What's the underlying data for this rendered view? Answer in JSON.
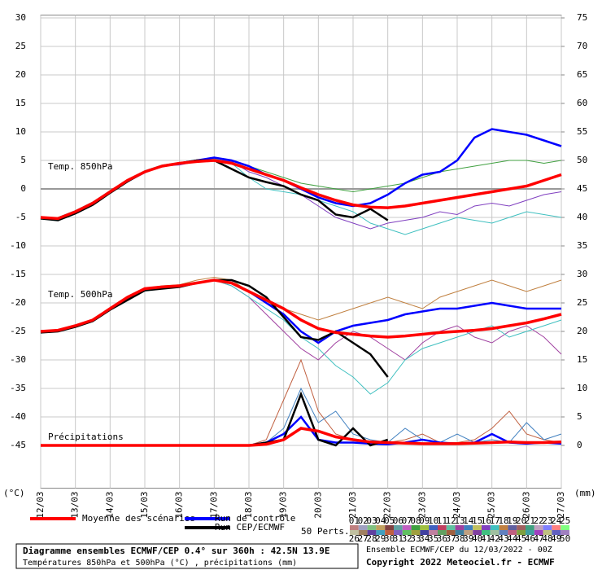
{
  "chart_data": {
    "type": "line",
    "x_unit_label": "(°C)",
    "y2_unit_label": "(mm)",
    "x": [
      0,
      0.5,
      1,
      1.5,
      2,
      2.5,
      3,
      3.5,
      4,
      4.5,
      5,
      5.5,
      6,
      6.5,
      7,
      7.5,
      8,
      8.5,
      9,
      9.5,
      10,
      10.5,
      11,
      11.5,
      12,
      12.5,
      13,
      13.5,
      14,
      14.5,
      15
    ],
    "xlim": [
      0,
      15
    ],
    "xticks": [
      {
        "value": 0,
        "label": "12/03"
      },
      {
        "value": 1,
        "label": "13/03"
      },
      {
        "value": 2,
        "label": "14/03"
      },
      {
        "value": 3,
        "label": "15/03"
      },
      {
        "value": 4,
        "label": "16/03"
      },
      {
        "value": 5,
        "label": "17/03"
      },
      {
        "value": 6,
        "label": "18/03"
      },
      {
        "value": 7,
        "label": "19/03"
      },
      {
        "value": 8,
        "label": "20/03"
      },
      {
        "value": 9,
        "label": "21/03"
      },
      {
        "value": 10,
        "label": "22/03"
      },
      {
        "value": 11,
        "label": "23/03"
      },
      {
        "value": 12,
        "label": "24/03"
      },
      {
        "value": 13,
        "label": "25/03"
      },
      {
        "value": 14,
        "label": "26/03"
      },
      {
        "value": 15,
        "label": "27/03"
      }
    ],
    "ylim": [
      -52.5,
      30.5
    ],
    "yticks": [
      -45,
      -40,
      -35,
      -30,
      -25,
      -20,
      -15,
      -10,
      -5,
      0,
      5,
      10,
      15,
      20,
      25,
      30
    ],
    "y2lim": [
      -7.5,
      75.5
    ],
    "y2ticks": [
      0,
      5,
      10,
      15,
      20,
      25,
      30,
      35,
      40,
      45,
      50,
      55,
      60,
      65,
      70,
      75
    ],
    "grid": true,
    "zero_line": true,
    "legend": [
      {
        "name": "Moyenne des scénarios",
        "color": "#ff0000"
      },
      {
        "name": "Run de contrôle",
        "color": "#0000ff"
      },
      {
        "name": "Run CEP/ECMWF",
        "color": "#000000"
      }
    ],
    "perts_title": "50 Perts.",
    "pert_labels": [
      "01",
      "02",
      "03",
      "04",
      "05",
      "06",
      "07",
      "08",
      "09",
      "10",
      "11",
      "12",
      "13",
      "14",
      "15",
      "16",
      "17",
      "18",
      "19",
      "20",
      "21",
      "22",
      "23",
      "24",
      "25",
      "26",
      "27",
      "28",
      "29",
      "30",
      "31",
      "32",
      "33",
      "34",
      "35",
      "36",
      "37",
      "38",
      "39",
      "40",
      "41",
      "42",
      "43",
      "44",
      "45",
      "46",
      "47",
      "48",
      "49",
      "50"
    ],
    "pert_colors": [
      "#c08080",
      "#a0a0c0",
      "#80c080",
      "#c0a060",
      "#804040",
      "#60a0a0",
      "#c060c0",
      "#40a040",
      "#a0c040",
      "#4060c0",
      "#c04060",
      "#60c0a0",
      "#a040a0",
      "#4080c0",
      "#c0c060",
      "#8040c0",
      "#40c0c0",
      "#c08040",
      "#6060a0",
      "#a06060",
      "#40a080",
      "#c0a0c0",
      "#8080ff",
      "#ff8080",
      "#80ff80",
      "#c0c0a0",
      "#a08060",
      "#6040a0",
      "#40a0c0",
      "#c06040",
      "#8060c0",
      "#60c060",
      "#a0a040",
      "#4040a0",
      "#c080a0",
      "#60a060",
      "#a06040",
      "#4080a0",
      "#c0a080",
      "#8040a0",
      "#40c080",
      "#a0c0a0",
      "#6080c0",
      "#c06080",
      "#80a040",
      "#40a0a0",
      "#a040c0",
      "#c0c080",
      "#6060c0",
      "#a080c0"
    ],
    "panels": [
      {
        "label": "Temp. 850hPa",
        "axis": "y",
        "members": [
          {
            "color": "#40a040",
            "values": [
              -5,
              -5,
              -4,
              -2.5,
              -0.5,
              1.5,
              3,
              4,
              4.5,
              5,
              5.5,
              5,
              4,
              3,
              2,
              1,
              0.5,
              0,
              -0.5,
              0,
              0.5,
              1,
              2,
              3,
              3.5,
              4,
              4.5,
              5,
              5,
              4.5,
              5
            ]
          },
          {
            "color": "#8040c0",
            "values": [
              -5,
              -5.2,
              -4.2,
              -2.7,
              -0.7,
              1.2,
              2.8,
              4,
              4.2,
              4.8,
              5.2,
              4.8,
              3,
              2,
              0.5,
              -1,
              -3,
              -5,
              -6,
              -7,
              -6,
              -5.5,
              -5,
              -4,
              -4.5,
              -3,
              -2.5,
              -3,
              -2,
              -1,
              -0.5
            ]
          },
          {
            "color": "#40c0c0",
            "values": [
              -5,
              -5,
              -3.8,
              -2.3,
              -0.3,
              1.6,
              3.2,
              4.2,
              4.6,
              5,
              5.3,
              4.5,
              2,
              0,
              -0.5,
              -1,
              -2,
              -3,
              -4,
              -6,
              -7,
              -8,
              -7,
              -6,
              -5,
              -5.5,
              -6,
              -5,
              -4,
              -4.5,
              -5
            ]
          }
        ],
        "control": [
          -5,
          -5.2,
          -4,
          -2.5,
          -0.5,
          1.5,
          3,
          4,
          4.5,
          5,
          5.5,
          5,
          4,
          2.5,
          1.5,
          0,
          -1.5,
          -2.5,
          -3,
          -2.5,
          -1,
          1,
          2.5,
          3,
          5,
          9,
          10.5,
          10,
          9.5,
          8.5,
          7.5
        ],
        "run": [
          -5.2,
          -5.5,
          -4.3,
          -2.8,
          -0.7,
          1.3,
          3,
          4,
          4.5,
          5,
          5,
          3.5,
          2,
          1.2,
          0.5,
          -1,
          -2,
          -4.5,
          -5,
          -3.5,
          -5.5,
          null,
          null,
          null,
          null,
          null,
          null,
          null,
          null,
          null,
          null
        ],
        "mean": [
          -5,
          -5.2,
          -4,
          -2.5,
          -0.5,
          1.5,
          3,
          4,
          4.5,
          4.8,
          5,
          4.5,
          3.5,
          2.5,
          1.5,
          0.2,
          -1,
          -2,
          -2.8,
          -3.2,
          -3.3,
          -3,
          -2.5,
          -2,
          -1.5,
          -1,
          -0.5,
          0,
          0.5,
          1.5,
          2.5
        ]
      },
      {
        "label": "Temp. 500hPa",
        "axis": "y",
        "members": [
          {
            "color": "#c08040",
            "values": [
              -25,
              -24.8,
              -24,
              -23,
              -21,
              -19,
              -17.5,
              -17,
              -16.8,
              -16,
              -15.5,
              -16,
              -18,
              -20,
              -21,
              -22,
              -23,
              -22,
              -21,
              -20,
              -19,
              -20,
              -21,
              -19,
              -18,
              -17,
              -16,
              -17,
              -18,
              -17,
              -16
            ]
          },
          {
            "color": "#a040a0",
            "values": [
              -25,
              -24.8,
              -24,
              -23,
              -21,
              -19,
              -17.5,
              -17.5,
              -17,
              -16.5,
              -16,
              -17,
              -19,
              -22,
              -25,
              -28,
              -30,
              -27,
              -25,
              -26,
              -28,
              -30,
              -27,
              -25,
              -24,
              -26,
              -27,
              -25,
              -24,
              -26,
              -29
            ]
          },
          {
            "color": "#40c0c0",
            "values": [
              -25,
              -24.8,
              -24,
              -23,
              -21,
              -19,
              -17.5,
              -17.2,
              -17,
              -16.5,
              -16,
              -17,
              -19,
              -21,
              -23,
              -26,
              -28,
              -31,
              -33,
              -36,
              -34,
              -30,
              -28,
              -27,
              -26,
              -25,
              -24,
              -26,
              -25,
              -24,
              -23
            ]
          }
        ],
        "control": [
          -25,
          -24.8,
          -24,
          -23,
          -21,
          -19,
          -17.5,
          -17.2,
          -17,
          -16.5,
          -16,
          -16.5,
          -18,
          -20,
          -22,
          -25,
          -27,
          -25,
          -24,
          -23.5,
          -23,
          -22,
          -21.5,
          -21,
          -21,
          -20.5,
          -20,
          -20.5,
          -21,
          -21,
          -21
        ],
        "run": [
          -25.2,
          -25,
          -24.2,
          -23.2,
          -21.2,
          -19.5,
          -17.8,
          -17.5,
          -17.2,
          -16.5,
          -16,
          -16,
          -17,
          -19,
          -22.5,
          -26,
          -26.5,
          -25,
          -27,
          -29,
          -33,
          null,
          null,
          null,
          null,
          null,
          null,
          null,
          null,
          null,
          null
        ],
        "mean": [
          -25,
          -24.8,
          -24,
          -23,
          -21,
          -19,
          -17.5,
          -17.2,
          -17,
          -16.5,
          -16,
          -16.5,
          -18,
          -19.5,
          -21,
          -23,
          -24.5,
          -25.2,
          -25.5,
          -25.8,
          -26,
          -25.8,
          -25.5,
          -25.2,
          -25,
          -24.8,
          -24.5,
          -24,
          -23.5,
          -22.8,
          -22
        ]
      },
      {
        "label": "Précipitations",
        "axis": "y2",
        "members": [
          {
            "color": "#c06040",
            "values": [
              0,
              0,
              0,
              0,
              0,
              0,
              0,
              0,
              0,
              0,
              0,
              0,
              0,
              1,
              8,
              15,
              6,
              2,
              1,
              0.5,
              0.5,
              1,
              2,
              0.5,
              0.5,
              1,
              3,
              6,
              2,
              1,
              0.5
            ]
          },
          {
            "color": "#4080c0",
            "values": [
              0,
              0,
              0,
              0,
              0,
              0,
              0,
              0,
              0,
              0,
              0,
              0,
              0,
              0.5,
              3,
              10,
              4,
              6,
              2,
              1,
              0.5,
              3,
              1,
              0.5,
              2,
              0.5,
              1,
              0.5,
              4,
              1,
              2
            ]
          }
        ],
        "control": [
          0,
          0,
          0,
          0,
          0,
          0,
          0,
          0,
          0,
          0,
          0,
          0,
          0,
          0.5,
          2,
          5,
          1,
          0.5,
          0.5,
          0.3,
          0.2,
          0.5,
          1,
          0.5,
          0.3,
          0.5,
          2,
          0.5,
          0.3,
          0.5,
          0.3
        ],
        "run": [
          0,
          0,
          0,
          0,
          0,
          0,
          0,
          0,
          0,
          0,
          0,
          0,
          0,
          0.5,
          1,
          9,
          1,
          0,
          3,
          0,
          1,
          null,
          null,
          null,
          null,
          null,
          null,
          null,
          null,
          null,
          null
        ],
        "mean": [
          0,
          0,
          0,
          0,
          0,
          0,
          0,
          0,
          0,
          0,
          0,
          0,
          0,
          0.2,
          1,
          3,
          2.5,
          1.5,
          1,
          0.6,
          0.5,
          0.4,
          0.3,
          0.3,
          0.3,
          0.4,
          0.5,
          0.6,
          0.5,
          0.5,
          0.6
        ]
      }
    ],
    "footer": {
      "title": "Diagramme ensembles ECMWF/CEP 0.4° sur 360h : 42.5N 13.9E",
      "subtitle": "Températures 850hPa et 500hPa (°C) , précipitations (mm)",
      "run_info": "Ensemble ECMWF/CEP du 12/03/2022 - 00Z",
      "copyright": "Copyright 2022 Meteociel.fr - ECMWF"
    }
  }
}
